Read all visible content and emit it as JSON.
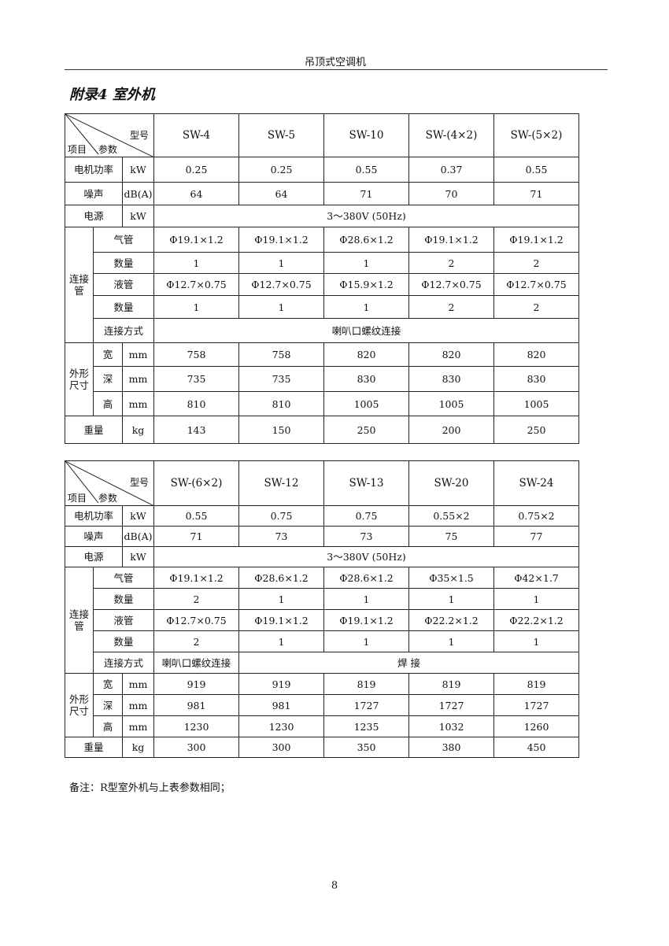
{
  "header": {
    "title": "吊顶式空调机"
  },
  "section_title": "附录4 室外机",
  "corner": {
    "model": "型号",
    "item": "项目",
    "param": "参数"
  },
  "labels": {
    "motor": "电机功率",
    "noise": "噪声",
    "power": "电源",
    "conn": "连接管",
    "gas": "气管",
    "qty": "数量",
    "liquid": "液管",
    "method": "连接方式",
    "dims": "外形尺寸",
    "width": "宽",
    "depth": "深",
    "height": "高",
    "weight": "重量"
  },
  "units": {
    "motor": "kW",
    "noise": "dB(A)",
    "power": "kW",
    "dim": "mm",
    "weight": "kg"
  },
  "tables": [
    {
      "models": [
        "SW-4",
        "SW-5",
        "SW-10",
        "SW-(4×2)",
        "SW-(5×2)"
      ],
      "motor": [
        "0.25",
        "0.25",
        "0.55",
        "0.37",
        "0.55"
      ],
      "noise": [
        "64",
        "64",
        "71",
        "70",
        "71"
      ],
      "power": "3～380V (50Hz)",
      "gas": [
        "Φ19.1×1.2",
        "Φ19.1×1.2",
        "Φ28.6×1.2",
        "Φ19.1×1.2",
        "Φ19.1×1.2"
      ],
      "gas_qty": [
        "1",
        "1",
        "1",
        "2",
        "2"
      ],
      "liquid": [
        "Φ12.7×0.75",
        "Φ12.7×0.75",
        "Φ15.9×1.2",
        "Φ12.7×0.75",
        "Φ12.7×0.75"
      ],
      "liquid_qty": [
        "1",
        "1",
        "1",
        "2",
        "2"
      ],
      "method": [
        {
          "text": "喇叭口螺纹连接",
          "span": 5
        }
      ],
      "width": [
        "758",
        "758",
        "820",
        "820",
        "820"
      ],
      "depth": [
        "735",
        "735",
        "830",
        "830",
        "830"
      ],
      "height": [
        "810",
        "810",
        "1005",
        "1005",
        "1005"
      ],
      "weight": [
        "143",
        "150",
        "250",
        "200",
        "250"
      ]
    },
    {
      "models": [
        "SW-(6×2)",
        "SW-12",
        "SW-13",
        "SW-20",
        "SW-24"
      ],
      "motor": [
        "0.55",
        "0.75",
        "0.75",
        "0.55×2",
        "0.75×2"
      ],
      "noise": [
        "71",
        "73",
        "73",
        "75",
        "77"
      ],
      "power": "3～380V (50Hz)",
      "gas": [
        "Φ19.1×1.2",
        "Φ28.6×1.2",
        "Φ28.6×1.2",
        "Φ35×1.5",
        "Φ42×1.7"
      ],
      "gas_qty": [
        "2",
        "1",
        "1",
        "1",
        "1"
      ],
      "liquid": [
        "Φ12.7×0.75",
        "Φ19.1×1.2",
        "Φ19.1×1.2",
        "Φ22.2×1.2",
        "Φ22.2×1.2"
      ],
      "liquid_qty": [
        "2",
        "1",
        "1",
        "1",
        "1"
      ],
      "method": [
        {
          "text": "喇叭口螺纹连接",
          "span": 1
        },
        {
          "text": "焊 接",
          "span": 4
        }
      ],
      "width": [
        "919",
        "919",
        "819",
        "819",
        "819"
      ],
      "depth": [
        "981",
        "981",
        "1727",
        "1727",
        "1727"
      ],
      "height": [
        "1230",
        "1230",
        "1235",
        "1032",
        "1260"
      ],
      "weight": [
        "300",
        "300",
        "350",
        "380",
        "450"
      ]
    }
  ],
  "note": "备注：R型室外机与上表参数相同；",
  "page_number": "8"
}
